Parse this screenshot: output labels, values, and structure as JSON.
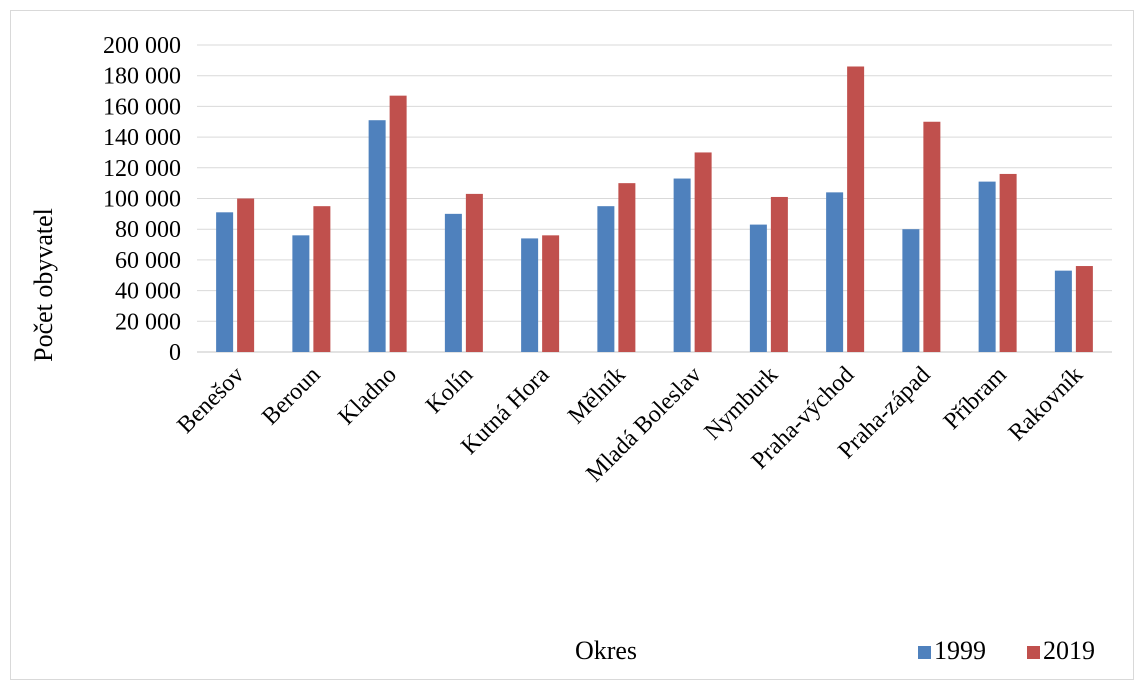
{
  "chart_data": {
    "type": "bar",
    "categories": [
      "Benešov",
      "Beroun",
      "Kladno",
      "Kolín",
      "Kutná Hora",
      "Mělník",
      "Mladá Boleslav",
      "Nymburk",
      "Praha-východ",
      "Praha-západ",
      "Příbram",
      "Rakovník"
    ],
    "series": [
      {
        "name": "1999",
        "color": "#4f81bd",
        "values": [
          91000,
          76000,
          151000,
          90000,
          74000,
          95000,
          113000,
          83000,
          104000,
          80000,
          111000,
          53000
        ]
      },
      {
        "name": "2019",
        "color": "#c0504d",
        "values": [
          100000,
          95000,
          167000,
          103000,
          76000,
          110000,
          130000,
          101000,
          186000,
          150000,
          116000,
          56000
        ]
      }
    ],
    "ylim": [
      0,
      200000
    ],
    "yticks": [
      "0",
      "20 000",
      "40 000",
      "60 000",
      "80 000",
      "100 000",
      "120 000",
      "140 000",
      "160 000",
      "180 000",
      "200 000"
    ],
    "xlabel": "Okres",
    "ylabel": "Počet obyvatel",
    "grid": true,
    "legend_position": "bottom-right"
  }
}
